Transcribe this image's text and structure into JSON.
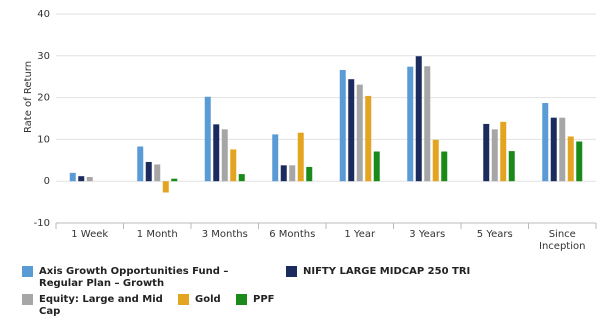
{
  "chart_data": {
    "type": "bar",
    "y_label": "Rate of Return",
    "categories": [
      "1 Week",
      "1 Month",
      "3 Months",
      "6 Months",
      "1 Year",
      "3 Years",
      "5 Years",
      "Since Inception"
    ],
    "series": [
      {
        "name": "Axis Growth Opportunities Fund – Regular Plan – Growth",
        "color": "#5a9bd5",
        "values": [
          2.0,
          8.3,
          20.2,
          11.2,
          26.6,
          27.4,
          null,
          18.7
        ]
      },
      {
        "name": "NIFTY LARGE MIDCAP 250 TRI",
        "color": "#1c2b5e",
        "values": [
          1.2,
          4.6,
          13.6,
          3.8,
          24.4,
          29.9,
          13.7,
          15.2
        ]
      },
      {
        "name": "Equity: Large and Mid Cap",
        "color": "#a6a6a6",
        "values": [
          1.0,
          4.0,
          12.4,
          3.8,
          23.1,
          27.5,
          12.4,
          15.2
        ]
      },
      {
        "name": "Gold",
        "color": "#e3a521",
        "values": [
          null,
          -2.7,
          7.6,
          11.6,
          20.4,
          9.9,
          14.2,
          10.7
        ]
      },
      {
        "name": "PPF",
        "color": "#1a8a1a",
        "values": [
          null,
          0.6,
          1.7,
          3.4,
          7.1,
          7.1,
          7.2,
          9.5
        ]
      }
    ],
    "ylim": [
      -10,
      40
    ],
    "yticks": [
      -10,
      0,
      10,
      20,
      30,
      40
    ],
    "grid": true
  }
}
